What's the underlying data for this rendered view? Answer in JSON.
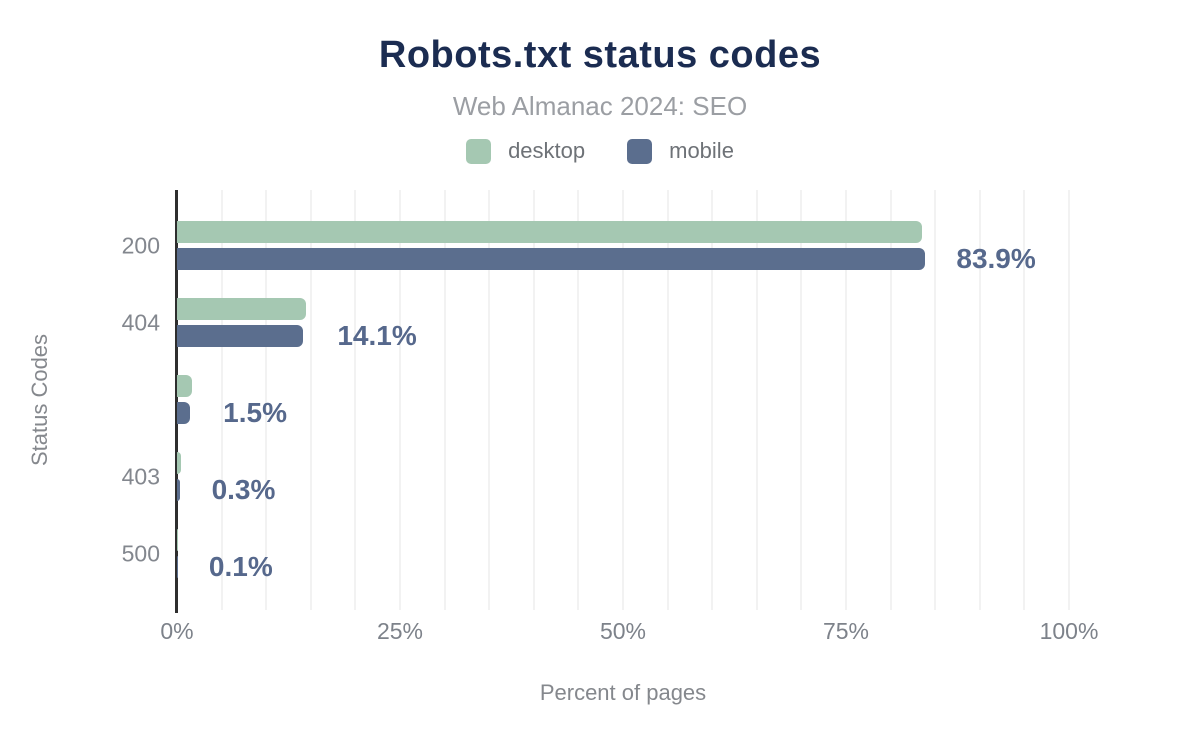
{
  "header": {
    "title": "Robots.txt status codes",
    "subtitle": "Web Almanac 2024: SEO"
  },
  "legend": {
    "items": [
      {
        "label": "desktop",
        "color": "#a5c8b2"
      },
      {
        "label": "mobile",
        "color": "#5b6e8e"
      }
    ]
  },
  "chart_data": {
    "type": "bar",
    "orientation": "horizontal",
    "title": "Robots.txt status codes",
    "subtitle": "Web Almanac 2024: SEO",
    "xlabel": "Percent of pages",
    "ylabel": "Status Codes",
    "categories": [
      "200",
      "404",
      "",
      "403",
      "500"
    ],
    "series": [
      {
        "name": "desktop",
        "color": "#a5c8b2",
        "values": [
          83.5,
          14.5,
          1.7,
          0.4,
          0.1
        ]
      },
      {
        "name": "mobile",
        "color": "#5b6e8e",
        "values": [
          83.9,
          14.1,
          1.5,
          0.3,
          0.1
        ]
      }
    ],
    "data_labels": [
      "83.9%",
      "14.1%",
      "1.5%",
      "0.3%",
      "0.1%"
    ],
    "data_label_series": "mobile",
    "x_ticks": [
      {
        "value": 0,
        "label": "0%"
      },
      {
        "value": 25,
        "label": "25%"
      },
      {
        "value": 50,
        "label": "50%"
      },
      {
        "value": 75,
        "label": "75%"
      },
      {
        "value": 100,
        "label": "100%"
      }
    ],
    "xlim": [
      0,
      100
    ],
    "grid": true,
    "gridline_step": 5,
    "legend_position": "top"
  },
  "style": {
    "title_color": "#1b2c51",
    "subtitle_color": "#9b9ea3",
    "desktop_color": "#a5c8b2",
    "mobile_color": "#5b6e8e",
    "data_label_color": "#56688c",
    "axis_text_color": "#7d828a",
    "gridline_color": "#f2f2f2",
    "axis_line_color": "#2e2e2e",
    "background": "#ffffff"
  }
}
